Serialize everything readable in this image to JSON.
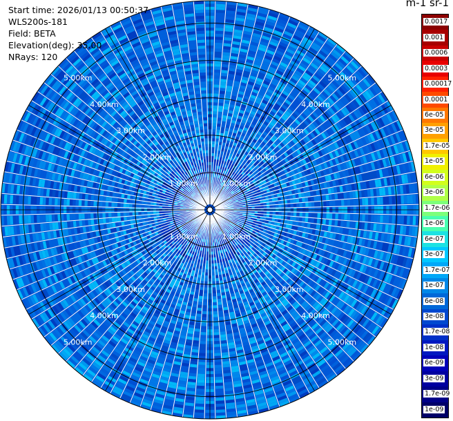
{
  "info": {
    "start_time": "Start time: 2026/01/13 00:50:37",
    "instrument": "WLS200s-181",
    "field": "Field: BETA",
    "elevation": "Elevation(deg): 35.00",
    "nrays": "NRays: 120"
  },
  "colorbar": {
    "title": "m-1 sr-1",
    "labels": [
      "0.0017",
      "0.001",
      "0.0006",
      "0.0003",
      "0.00017",
      "0.0001",
      "6e-05",
      "3e-05",
      "1.7e-05",
      "1e-05",
      "6e-06",
      "3e-06",
      "1.7e-06",
      "1e-06",
      "6e-07",
      "3e-07",
      "1.7e-07",
      "1e-07",
      "6e-08",
      "3e-08",
      "1.7e-08",
      "1e-08",
      "6e-09",
      "3e-09",
      "1.7e-09",
      "1e-09"
    ],
    "colors": [
      "#8b0000",
      "#a80000",
      "#c80000",
      "#e80000",
      "#ff2000",
      "#ff4a00",
      "#ff7800",
      "#ffa000",
      "#ffc800",
      "#f0f000",
      "#d2ff1c",
      "#b0ff48",
      "#7cff7a",
      "#48ffb0",
      "#1ce2e2",
      "#00c8ff",
      "#00a8f8",
      "#0088e8",
      "#0068d8",
      "#0048d0",
      "#0030c8",
      "#0018c0",
      "#0000b8",
      "#0000a0",
      "#000088",
      "#000068"
    ]
  },
  "chart_data": {
    "type": "ppi",
    "elevation_deg": 35.0,
    "n_rays": 120,
    "max_range_km": 5.6,
    "range_rings_km": [
      1,
      2,
      3,
      4,
      5
    ],
    "range_ring_labels": [
      "1.00km",
      "2.00km",
      "3.00km",
      "4.00km",
      "5.00km"
    ],
    "field": "BETA",
    "units": "m-1 sr-1",
    "dominant_value_range": [
      "3e-08",
      "1e-07"
    ]
  }
}
